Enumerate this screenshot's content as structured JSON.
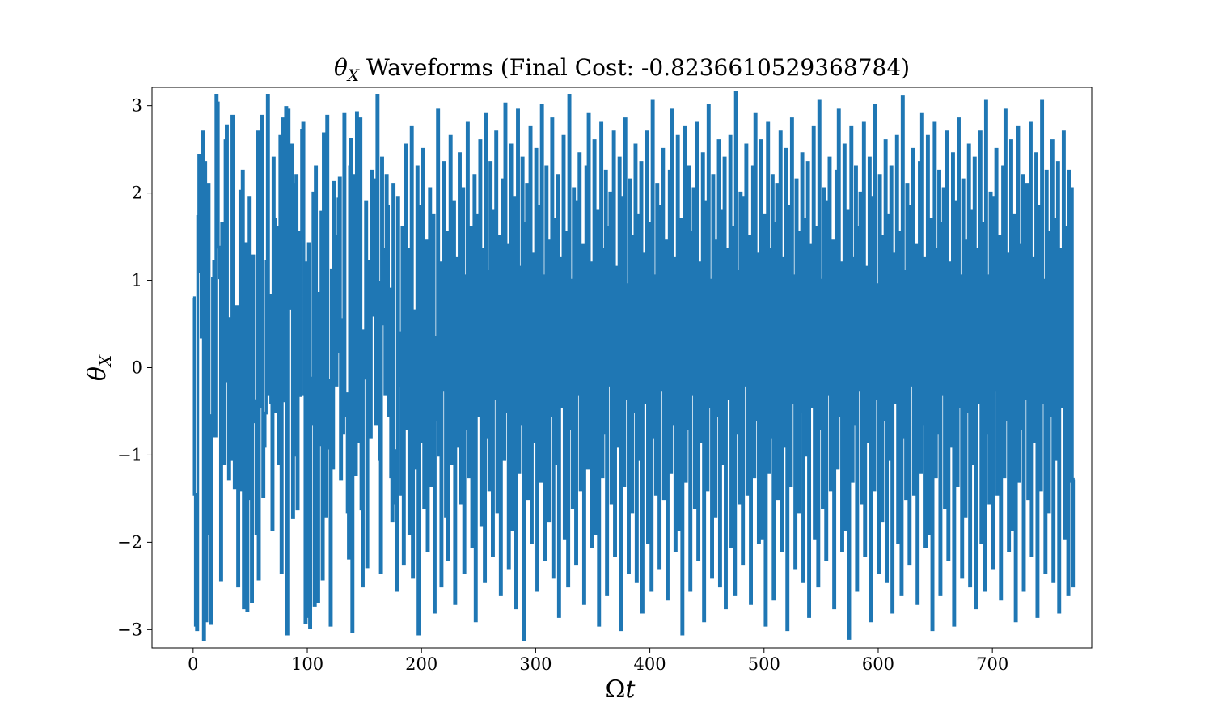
{
  "chart_data": {
    "type": "line",
    "title": {
      "symbol": "θ",
      "subscript": "X",
      "text": " Waveforms (Final Cost: -0.8236610529368784)"
    },
    "xlabel": {
      "symbol": "Ω",
      "var": "t"
    },
    "ylabel": {
      "symbol": "θ",
      "subscript": "X"
    },
    "xlim": [
      -36,
      787
    ],
    "ylim": [
      -3.21,
      3.21
    ],
    "xticks": [
      0,
      100,
      200,
      300,
      400,
      500,
      600,
      700
    ],
    "xtick_labels": [
      "0",
      "100",
      "200",
      "300",
      "400",
      "500",
      "600",
      "700"
    ],
    "yticks": [
      -3,
      -2,
      -1,
      0,
      1,
      2,
      3
    ],
    "ytick_labels": [
      "−3",
      "−2",
      "−1",
      "0",
      "1",
      "2",
      "3"
    ],
    "grid": false,
    "legend": "none",
    "series": [
      {
        "color": "#1f77b4",
        "step": true,
        "x_start": 0,
        "x_step": 1,
        "y": [
          0.8,
          -1.45,
          -2.95,
          -3.0,
          1.73,
          2.43,
          1.1,
          0.35,
          2.7,
          -3.12,
          2.35,
          -2.9,
          -1.9,
          2.1,
          -1.65,
          -2.93,
          -0.55,
          1.02,
          1.22,
          -0.78,
          3.12,
          3.03,
          1.38,
          1.03,
          -2.43,
          1.65,
          0.2,
          -1.1,
          2.6,
          2.77,
          -0.15,
          -1.28,
          0.56,
          -1.05,
          2.88,
          -0.85,
          -1.38,
          -0.72,
          0.7,
          -2.5,
          -0.43,
          2.02,
          -1.4,
          2.25,
          -2.75,
          -0.35,
          1.42,
          -2.78,
          -0.55,
          1.95,
          -1.5,
          -2.68,
          1.28,
          -0.62,
          -0.38,
          -1.9,
          2.7,
          -2.42,
          1.0,
          -0.45,
          2.88,
          -1.48,
          -0.9,
          -0.52,
          1.22,
          3.12,
          -0.3,
          0.83,
          -0.4,
          -1.85,
          2.4,
          1.7,
          -0.5,
          0.95,
          1.6,
          -1.1,
          2.65,
          -2.35,
          2.85,
          -0.38,
          0.55,
          2.98,
          -3.05,
          2.95,
          0.95,
          0.68,
          2.55,
          -1.72,
          2.1,
          -1.0,
          2.2,
          -1.62,
          1.55,
          -0.32,
          1.48,
          2.72,
          2.8,
          -0.3,
          -2.92,
          1.2,
          -2.85,
          1.42,
          -2.98,
          -0.65,
          -0.12,
          2.0,
          -2.72,
          2.3,
          -0.2,
          -2.68,
          0.85,
          -0.88,
          1.78,
          -2.42,
          2.68,
          -0.85,
          -1.7,
          2.88,
          -0.15,
          -0.92,
          -2.95,
          1.12,
          -1.15,
          2.12,
          1.5,
          -0.2,
          0.18,
          1.93,
          2.17,
          -1.28,
          0.55,
          -0.75,
          2.9,
          -0.55,
          -0.3,
          -1.65,
          -2.18,
          2.3,
          2.62,
          -3.02,
          1.05,
          2.2,
          -1.22,
          2.92,
          0.6,
          -0.85,
          2.85,
          -1.62,
          -2.5,
          0.42,
          -0.12,
          1.9,
          -2.28,
          1.22,
          0.3,
          -0.8,
          2.25,
          0.6,
          1.7,
          2.15,
          -0.65,
          3.12,
          0.98,
          -1.05,
          -2.35,
          2.4,
          0.5,
          1.35,
          -0.3,
          2.2,
          1.85,
          -0.55,
          0.9,
          -1.25,
          -1.75,
          2.1,
          -1.55,
          -0.95,
          -2.55,
          1.95,
          0.4,
          -0.2,
          -1.45,
          1.6,
          -2.25,
          0.75,
          2.55,
          -0.7,
          1.35,
          -1.9,
          0.1,
          2.75,
          -2.4,
          0.65,
          -0.45,
          -1.15,
          2.3,
          -3.05,
          1.85,
          0.2,
          -0.85,
          2.5,
          -1.6,
          0.9,
          1.45,
          -2.1,
          -0.3,
          2.05,
          -1.35,
          0.55,
          1.75,
          -2.8,
          0.35,
          -0.6,
          2.95,
          -1.0,
          1.2,
          -2.5,
          0.8,
          2.35,
          -0.25,
          -1.7,
          1.55,
          -2.2,
          0.45,
          2.65,
          -1.1,
          -0.4,
          1.9,
          -2.7,
          0.6,
          1.25,
          -0.9,
          2.45,
          -1.55,
          0.15,
          2.05,
          -2.35,
          1.05,
          -0.7,
          2.8,
          -1.25,
          0.35,
          1.6,
          -2.05,
          -0.15,
          2.2,
          -2.9,
          0.95,
          1.75,
          -0.55,
          2.6,
          -1.8,
          0.25,
          1.35,
          -2.45,
          2.9,
          -0.8,
          1.1,
          -1.4,
          2.35,
          0.05,
          -2.15,
          1.8,
          -0.35,
          2.7,
          -1.65,
          0.7,
          1.5,
          -2.6,
          0.3,
          2.15,
          -1.05,
          3.02,
          -0.5,
          1.4,
          -2.3,
          0.85,
          2.55,
          -1.85,
          -0.1,
          1.95,
          -2.75,
          0.55,
          2.95,
          -1.2,
          1.15,
          -0.65,
          2.4,
          -3.12,
          1.65,
          -0.4,
          2.1,
          -1.5,
          0.4,
          2.75,
          -2.0,
          0.95,
          1.3,
          -0.85,
          2.5,
          -2.55,
          0.2,
          1.85,
          -1.3,
          3.0,
          -0.25,
          1.05,
          -2.2,
          2.3,
          0.65,
          -1.75,
          1.45,
          -0.55,
          2.85,
          -2.4,
          0.1,
          1.7,
          -1.1,
          2.2,
          -2.85,
          0.8,
          1.25,
          -0.45,
          2.65,
          -1.95,
          0.35,
          1.55,
          -2.5,
          3.12,
          -0.7,
          1.0,
          -1.6,
          2.05,
          0.5,
          -2.25,
          1.9,
          -0.3,
          2.45,
          -1.4,
          0.75,
          1.4,
          -2.7,
          0.25,
          2.3,
          -1.15,
          2.9,
          -0.6,
          1.2,
          -2.05,
          0.9,
          2.6,
          -1.9,
          -0.05,
          1.8,
          -2.95,
          0.6,
          2.8,
          -1.25,
          1.35,
          -0.75,
          2.25,
          -2.6,
          1.6,
          -0.2,
          2.0,
          -1.55,
          0.45,
          2.7,
          -2.15,
          1.0,
          1.15,
          -0.9,
          2.4,
          -3.0,
          0.3,
          1.95,
          -1.35,
          2.85,
          -0.35,
          0.95,
          -2.35,
          2.15,
          0.7,
          -1.65,
          1.5,
          -0.5,
          2.55,
          -2.45,
          0.15,
          1.75,
          -1.05,
          2.35,
          -2.8,
          0.85,
          1.3,
          -0.4,
          2.7,
          -2.0,
          0.4,
          1.65,
          -2.55,
          3.05,
          -0.8,
          1.05,
          -1.45,
          2.1,
          0.55,
          -2.3,
          1.85,
          -0.25,
          2.5,
          -1.5,
          0.8,
          1.45,
          -2.65,
          0.2,
          2.25,
          -1.2,
          2.95,
          -0.65,
          1.25,
          -2.1,
          0.95,
          2.65,
          -1.85,
          -0.1,
          1.7,
          -3.05,
          0.65,
          2.75,
          -1.3,
          1.4,
          -0.7,
          2.3,
          -2.55,
          1.55,
          -0.3,
          2.05,
          -1.6,
          0.5,
          2.8,
          -2.2,
          1.05,
          1.2,
          -0.85,
          2.45,
          -2.9,
          0.35,
          1.9,
          -1.4,
          3.0,
          -0.45,
          1.0,
          -2.4,
          2.2,
          0.75,
          -1.7,
          1.45,
          -0.55,
          2.6,
          -2.5,
          0.1,
          1.8,
          -1.1,
          2.4,
          -2.75,
          0.9,
          1.35,
          -0.35,
          2.65,
          -2.05,
          0.45,
          1.6,
          -2.6,
          3.15,
          -0.75,
          1.1,
          -1.55,
          2.0,
          0.6,
          -2.25,
          1.95,
          -0.2,
          2.55,
          -1.45,
          0.7,
          1.5,
          -2.7,
          0.25,
          2.3,
          -1.25,
          2.9,
          -0.6,
          1.3,
          -2.0,
          0.85,
          2.6,
          -1.95,
          -0.15,
          1.75,
          -2.95,
          0.55,
          2.8,
          -1.2,
          1.35,
          -0.8,
          2.2,
          -2.65,
          1.65,
          -0.35,
          2.1,
          -1.5,
          0.4,
          2.7,
          -2.1,
          0.95,
          1.25,
          -0.9,
          2.5,
          -3.0,
          0.3,
          1.85,
          -1.35,
          2.85,
          -0.4,
          1.05,
          -2.3,
          2.15,
          0.65,
          -1.65,
          1.55,
          -0.5,
          2.45,
          -2.45,
          0.2,
          1.7,
          -1.0,
          2.35,
          -2.85,
          0.8,
          1.4,
          -0.45,
          2.75,
          -1.95,
          0.35,
          1.6,
          -2.5,
          3.05,
          -0.7,
          1.0,
          -1.6,
          2.05,
          0.5,
          -2.2,
          1.9,
          -0.3,
          2.4,
          -1.4,
          0.75,
          1.45,
          -2.75,
          0.15,
          2.25,
          -1.15,
          2.95,
          -0.55,
          1.2,
          -2.1,
          0.9,
          2.55,
          -1.85,
          -0.05,
          1.8,
          -3.1,
          0.6,
          2.75,
          -1.3,
          1.25,
          -0.65,
          2.3,
          -2.55,
          1.6,
          -0.25,
          2.0,
          -1.55,
          0.45,
          2.8,
          -2.15,
          1.05,
          1.15,
          -0.85,
          2.4,
          -2.9,
          0.3,
          1.95,
          -1.4,
          3.0,
          -0.35,
          0.95,
          -2.35,
          2.2,
          0.7,
          -1.75,
          1.5,
          -0.6,
          2.6,
          -2.45,
          0.1,
          1.75,
          -1.05,
          2.3,
          -2.8,
          0.85,
          1.3,
          -0.4,
          2.65,
          -2.0,
          0.45,
          1.55,
          -2.6,
          3.1,
          -0.8,
          1.1,
          -1.5,
          2.1,
          0.55,
          -2.25,
          1.85,
          -0.2,
          2.5,
          -1.45,
          0.8,
          1.4,
          -2.7,
          0.25,
          2.35,
          -1.2,
          2.9,
          -0.65,
          1.25,
          -2.05,
          0.9,
          2.65,
          -1.9,
          -0.1,
          1.7,
          -3.0,
          0.6,
          2.8,
          -1.25,
          1.35,
          -0.75,
          2.25,
          -2.6,
          1.65,
          -0.3,
          2.05,
          -1.6,
          0.4,
          2.7,
          -2.2,
          1.0,
          1.2,
          -0.9,
          2.45,
          -2.95,
          0.35,
          1.9,
          -1.35,
          2.85,
          -0.45,
          1.05,
          -2.4,
          2.15,
          0.75,
          -1.7,
          1.45,
          -0.5,
          2.55,
          -2.5,
          0.15,
          1.8,
          -1.1,
          2.4,
          -2.75,
          0.9,
          1.35,
          -0.4,
          2.7,
          -2.0,
          0.4,
          1.65,
          -2.55,
          3.05,
          -0.75,
          1.05,
          -1.55,
          2.0,
          0.6,
          -2.3,
          1.95,
          -0.25,
          2.5,
          -1.45,
          0.7,
          1.5,
          -2.65,
          0.2,
          2.3,
          -1.25,
          2.95,
          -0.6,
          1.3,
          -2.1,
          0.85,
          2.6,
          -1.85,
          -0.15,
          1.75,
          -2.9,
          0.55,
          2.75,
          -1.3,
          1.4,
          -0.7,
          2.2,
          -2.55,
          1.6,
          -0.35,
          2.1,
          -1.5,
          0.45,
          2.8,
          -2.15,
          0.95,
          1.25,
          -0.85,
          2.45,
          -2.85,
          0.3,
          1.85,
          -1.4,
          3.05,
          -0.4,
          1.0,
          -2.35,
          2.25,
          0.65,
          -1.65,
          1.55,
          -0.55,
          2.6,
          -2.45,
          0.1,
          1.7,
          -1.05,
          2.35,
          -2.8,
          0.8,
          1.35,
          -0.45,
          2.7,
          -1.95,
          0.4,
          1.6,
          -2.6,
          2.25,
          -1.3,
          2.05,
          -2.5,
          -1.28
        ]
      }
    ]
  }
}
